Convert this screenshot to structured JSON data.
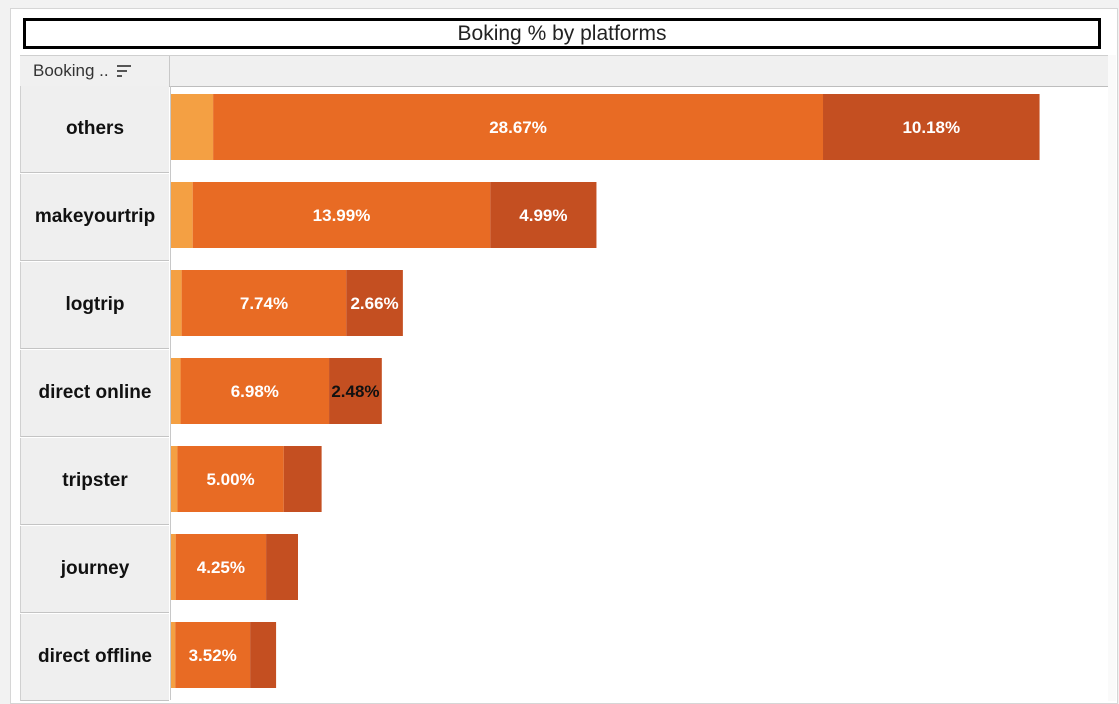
{
  "chart_data": {
    "type": "bar",
    "orientation": "horizontal",
    "stacked": true,
    "title": "Boking % by platforms",
    "column_header": "Booking ..",
    "categories": [
      "others",
      "makeyourtrip",
      "logtrip",
      "direct online",
      "tripster",
      "journey",
      "direct offline"
    ],
    "series": [
      {
        "color": "#f4a043",
        "values": [
          1.98,
          1.02,
          0.5,
          0.45,
          0.3,
          0.22,
          0.2
        ]
      },
      {
        "color": "#e86b24",
        "values": [
          28.67,
          13.99,
          7.74,
          6.98,
          5.0,
          4.25,
          3.52
        ],
        "labels": [
          "28.67%",
          "13.99%",
          "7.74%",
          "6.98%",
          "5.00%",
          "4.25%",
          "3.52%"
        ]
      },
      {
        "color": "#c44f21",
        "values": [
          10.18,
          4.99,
          2.66,
          2.48,
          1.78,
          1.5,
          1.22
        ],
        "labels": [
          "10.18%",
          "4.99%",
          "2.66%",
          "2.48%",
          "",
          "",
          ""
        ]
      }
    ],
    "xlim": [
      0,
      44
    ],
    "label_colors": [
      "#ffffff",
      "#ffffff",
      "#ffffff",
      "#111111",
      "#ffffff",
      "#ffffff",
      "#ffffff"
    ],
    "grid": false,
    "legend": "none"
  }
}
